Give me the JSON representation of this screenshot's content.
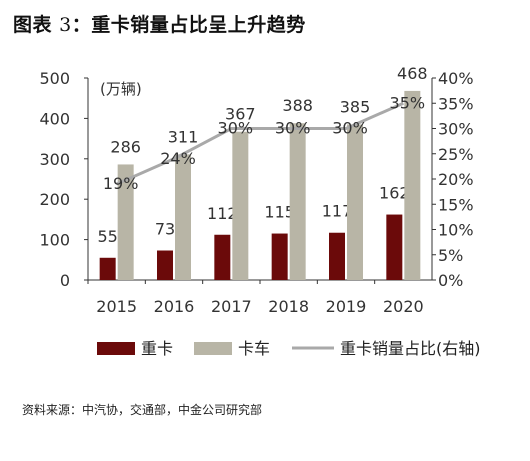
{
  "title": {
    "prefix": "图表",
    "number": "3",
    "text": "：重卡销量占比呈上升趋势"
  },
  "source": "资料来源：中汽协，交通部，中金公司研究部",
  "chart_data": {
    "type": "bar",
    "categories": [
      "2015",
      "2016",
      "2017",
      "2018",
      "2019",
      "2020"
    ],
    "series": [
      {
        "name": "重卡",
        "type": "bar",
        "axis": "left",
        "color": "#6b0a0a",
        "values": [
          55,
          73,
          112,
          115,
          117,
          162
        ]
      },
      {
        "name": "卡车",
        "type": "bar",
        "axis": "left",
        "color": "#b8b5a6",
        "values": [
          286,
          311,
          367,
          388,
          385,
          468
        ]
      },
      {
        "name": "重卡销量占比(右轴)",
        "type": "line",
        "axis": "right",
        "color": "#a9a9a9",
        "values": [
          19,
          24,
          30,
          30,
          30,
          35
        ]
      }
    ],
    "unit_label": "(万辆)",
    "ylim": [
      0,
      500
    ],
    "yticks": [
      0,
      100,
      200,
      300,
      400,
      500
    ],
    "y2lim": [
      0,
      40
    ],
    "y2ticks": [
      "0%",
      "5%",
      "10%",
      "15%",
      "20%",
      "25%",
      "30%",
      "35%",
      "40%"
    ],
    "legend_position": "bottom",
    "grid": false
  }
}
